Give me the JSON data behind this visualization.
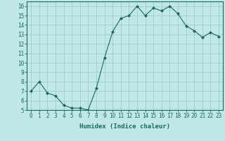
{
  "x": [
    0,
    1,
    2,
    3,
    4,
    5,
    6,
    7,
    8,
    9,
    10,
    11,
    12,
    13,
    14,
    15,
    16,
    17,
    18,
    19,
    20,
    21,
    22,
    23
  ],
  "y": [
    7,
    8,
    6.8,
    6.5,
    5.5,
    5.2,
    5.2,
    5.0,
    7.3,
    10.5,
    13.3,
    14.7,
    15.0,
    16.0,
    15.0,
    15.8,
    15.5,
    16.0,
    15.2,
    13.9,
    13.4,
    12.7,
    13.2,
    12.8
  ],
  "line_color": "#1a6b5a",
  "marker": "D",
  "marker_size": 2,
  "bg_color": "#c0e8e8",
  "grid_color": "#a0cccc",
  "xlabel": "Humidex (Indice chaleur)",
  "xlim": [
    -0.5,
    23.5
  ],
  "ylim": [
    5,
    16.5
  ],
  "yticks": [
    5,
    6,
    7,
    8,
    9,
    10,
    11,
    12,
    13,
    14,
    15,
    16
  ],
  "xticks": [
    0,
    1,
    2,
    3,
    4,
    5,
    6,
    7,
    8,
    9,
    10,
    11,
    12,
    13,
    14,
    15,
    16,
    17,
    18,
    19,
    20,
    21,
    22,
    23
  ],
  "font_color": "#1a6b5a",
  "label_fontsize": 6.5,
  "tick_fontsize": 5.5
}
